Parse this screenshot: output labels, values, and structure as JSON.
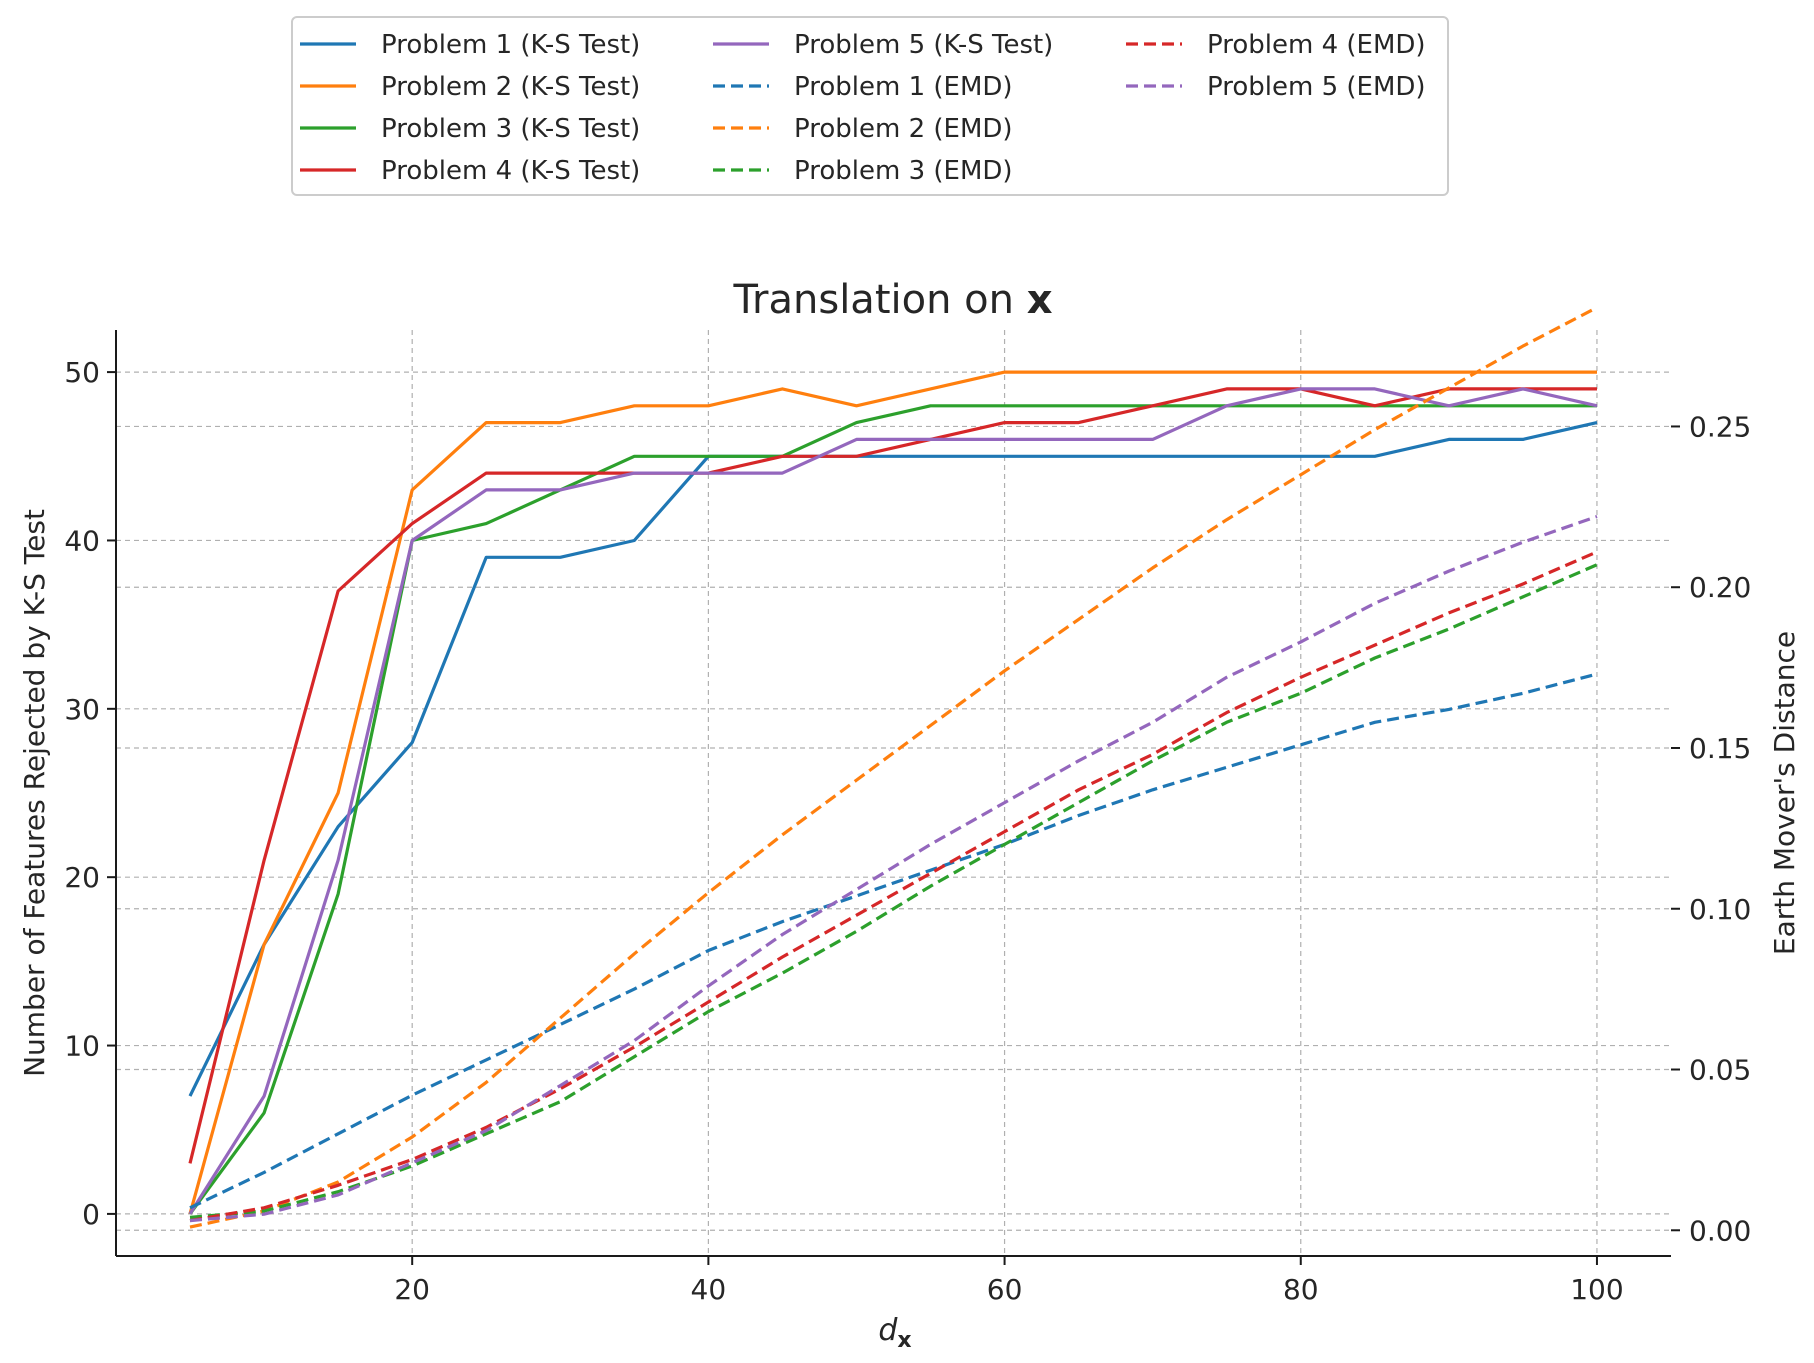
{
  "chart_data": {
    "type": "line",
    "title": "Translation on ",
    "title_bold": "x",
    "xlabel": "d",
    "xlabel_sub": "x",
    "ylabel": "Number of Features Rejected by K-S Test",
    "y2label": "Earth Mover's Distance",
    "xlim": [
      0,
      105
    ],
    "ylim": [
      -2.5,
      52.5
    ],
    "y2lim": [
      -0.008,
      0.28
    ],
    "x_ticks": [
      20,
      40,
      60,
      80,
      100
    ],
    "y_ticks": [
      0,
      10,
      20,
      30,
      40,
      50
    ],
    "y2_ticks": [
      0.0,
      0.05,
      0.1,
      0.15,
      0.2,
      0.25
    ],
    "y2_tick_labels": [
      "0.00",
      "0.05",
      "0.10",
      "0.15",
      "0.20",
      "0.25"
    ],
    "grid": true,
    "legend_position": "top-center, above plot",
    "x": [
      5,
      10,
      15,
      20,
      25,
      30,
      35,
      40,
      45,
      50,
      55,
      60,
      65,
      70,
      75,
      80,
      85,
      90,
      95,
      100
    ],
    "series": [
      {
        "name": "Problem 1 (K-S Test)",
        "axis": "left",
        "style": "solid",
        "color": "#1f77b4",
        "values": [
          7,
          16,
          23,
          28,
          39,
          39,
          40,
          45,
          45,
          45,
          45,
          45,
          45,
          45,
          45,
          45,
          45,
          46,
          46,
          47
        ]
      },
      {
        "name": "Problem 2 (K-S Test)",
        "axis": "left",
        "style": "solid",
        "color": "#ff7f0e",
        "values": [
          0,
          16,
          25,
          43,
          47,
          47,
          48,
          48,
          49,
          48,
          49,
          50,
          50,
          50,
          50,
          50,
          50,
          50,
          50,
          50
        ]
      },
      {
        "name": "Problem 3 (K-S Test)",
        "axis": "left",
        "style": "solid",
        "color": "#2ca02c",
        "values": [
          0,
          6,
          19,
          40,
          41,
          43,
          45,
          45,
          45,
          47,
          48,
          48,
          48,
          48,
          48,
          48,
          48,
          48,
          48,
          48
        ]
      },
      {
        "name": "Problem 4 (K-S Test)",
        "axis": "left",
        "style": "solid",
        "color": "#d62728",
        "values": [
          3,
          21,
          37,
          41,
          44,
          44,
          44,
          44,
          45,
          45,
          46,
          47,
          47,
          48,
          49,
          49,
          48,
          49,
          49,
          49
        ]
      },
      {
        "name": "Problem 5 (K-S Test)",
        "axis": "left",
        "style": "solid",
        "color": "#9467bd",
        "values": [
          0,
          7,
          21,
          40,
          43,
          43,
          44,
          44,
          44,
          46,
          46,
          46,
          46,
          46,
          48,
          49,
          49,
          48,
          49,
          48
        ]
      },
      {
        "name": "Problem 1 (EMD)",
        "axis": "right",
        "style": "dashed",
        "color": "#1f77b4",
        "values": [
          0.007,
          0.018,
          0.03,
          0.042,
          0.053,
          0.064,
          0.075,
          0.087,
          0.096,
          0.104,
          0.112,
          0.12,
          0.129,
          0.137,
          0.144,
          0.151,
          0.158,
          0.162,
          0.167,
          0.173
        ]
      },
      {
        "name": "Problem 2 (EMD)",
        "axis": "right",
        "style": "dashed",
        "color": "#ff7f0e",
        "values": [
          0.001,
          0.006,
          0.015,
          0.029,
          0.046,
          0.066,
          0.086,
          0.105,
          0.123,
          0.14,
          0.157,
          0.174,
          0.19,
          0.206,
          0.221,
          0.235,
          0.249,
          0.262,
          0.275,
          0.287
        ]
      },
      {
        "name": "Problem 3 (EMD)",
        "axis": "right",
        "style": "dashed",
        "color": "#2ca02c",
        "values": [
          0.004,
          0.006,
          0.012,
          0.02,
          0.03,
          0.04,
          0.054,
          0.068,
          0.08,
          0.093,
          0.107,
          0.12,
          0.133,
          0.146,
          0.158,
          0.167,
          0.178,
          0.187,
          0.197,
          0.207
        ]
      },
      {
        "name": "Problem 4 (EMD)",
        "axis": "right",
        "style": "dashed",
        "color": "#d62728",
        "values": [
          0.003,
          0.007,
          0.014,
          0.022,
          0.032,
          0.044,
          0.057,
          0.071,
          0.085,
          0.098,
          0.111,
          0.124,
          0.137,
          0.148,
          0.161,
          0.172,
          0.182,
          0.192,
          0.201,
          0.211
        ]
      },
      {
        "name": "Problem 5 (EMD)",
        "axis": "right",
        "style": "dashed",
        "color": "#9467bd",
        "values": [
          0.003,
          0.005,
          0.011,
          0.021,
          0.031,
          0.045,
          0.059,
          0.076,
          0.092,
          0.106,
          0.12,
          0.133,
          0.146,
          0.158,
          0.172,
          0.183,
          0.195,
          0.205,
          0.214,
          0.222
        ]
      }
    ]
  }
}
